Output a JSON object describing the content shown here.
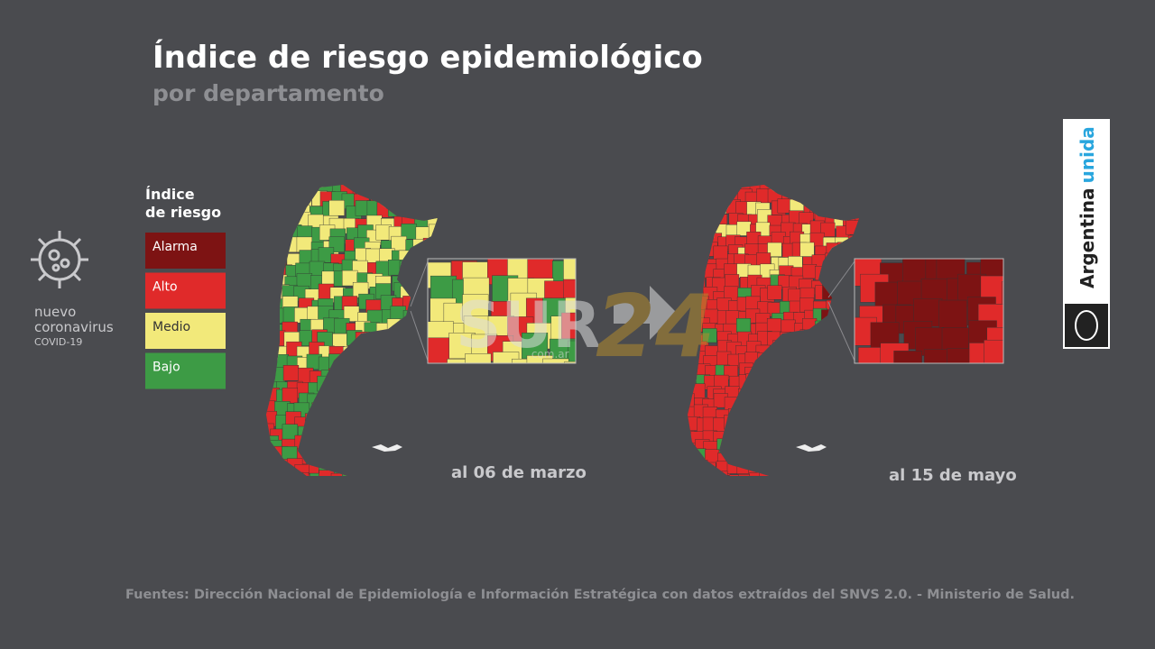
{
  "header": {
    "title": "Índice de riesgo epidemiológico",
    "subtitle": "por departamento"
  },
  "logo": {
    "lines": [
      "nuevo",
      "coronavirus"
    ],
    "tag": "COVID-19"
  },
  "legend": {
    "title": [
      "Índice",
      "de riesgo"
    ],
    "items": [
      "Alarma",
      "Alto",
      "Medio",
      "Bajo"
    ]
  },
  "maps": [
    {
      "caption": "al 06 de marzo"
    },
    {
      "caption": "al 15 de mayo"
    }
  ],
  "watermark": {
    "main": "SUR",
    "number": "24",
    "domain": ".com.ar"
  },
  "brand": {
    "word": "Argentina",
    "accent": "unida"
  },
  "source": "Fuentes: Dirección Nacional de Epidemiología e Información Estratégica con datos extraídos del SNVS 2.0. - Ministerio de Salud."
}
